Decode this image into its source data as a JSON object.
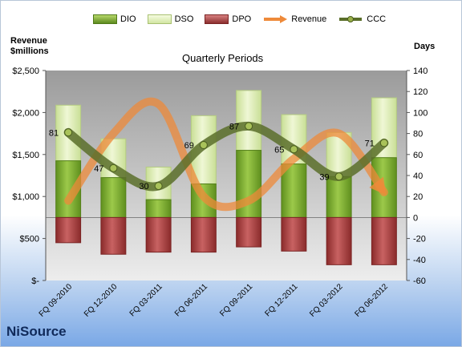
{
  "company": "NiSource",
  "left_axis_title": [
    "Revenue",
    "$millions"
  ],
  "right_axis_title": "Days",
  "subtitle": "Quarterly Periods",
  "legend": [
    {
      "key": "dio",
      "label": "DIO"
    },
    {
      "key": "dso",
      "label": "DSO"
    },
    {
      "key": "dpo",
      "label": "DPO"
    },
    {
      "key": "revenue",
      "label": "Revenue"
    },
    {
      "key": "ccc",
      "label": "CCC"
    }
  ],
  "colors": {
    "dio": "#7aa832",
    "dso": "#e2efb8",
    "dpo": "#a33c3c",
    "revenue": "#ee8a3a",
    "ccc": "#5a6e2a",
    "plot_bg": "#c8c8c8"
  },
  "chart_data": {
    "type": "bar",
    "categories": [
      "FQ 09-2010",
      "FQ 12-2010",
      "FQ 03-2011",
      "FQ 06-2011",
      "FQ 09-2011",
      "FQ 12-2011",
      "FQ 03-2012",
      "FQ 06-2012"
    ],
    "series": [
      {
        "name": "DIO",
        "axis": "right",
        "values": [
          54,
          38,
          17,
          32,
          64,
          51,
          39,
          57
        ]
      },
      {
        "name": "DSO",
        "axis": "right",
        "values": [
          53,
          37,
          31,
          65,
          57,
          47,
          42,
          57
        ]
      },
      {
        "name": "DPO",
        "axis": "right",
        "values": [
          -24,
          -35,
          -33,
          -33,
          -28,
          -32,
          -45,
          -45
        ]
      },
      {
        "name": "Revenue",
        "axis": "left",
        "type": "line",
        "values": [
          950,
          1750,
          2100,
          1000,
          950,
          1450,
          1750,
          1050
        ]
      },
      {
        "name": "CCC",
        "axis": "right",
        "type": "line",
        "values": [
          81,
          47,
          30,
          69,
          87,
          65,
          39,
          71
        ]
      }
    ],
    "ccc_labels": [
      "81",
      "47",
      "30",
      "69",
      "87",
      "65",
      "39",
      "71"
    ],
    "left_axis": {
      "ylim": [
        0,
        2500
      ],
      "ticks": [
        0,
        500,
        1000,
        1500,
        2000,
        2500
      ],
      "tick_labels": [
        "$-",
        "$500",
        "$1,000",
        "$1,500",
        "$2,000",
        "$2,500"
      ]
    },
    "right_axis": {
      "ylim": [
        -60,
        140
      ],
      "ticks": [
        -60,
        -40,
        -20,
        0,
        20,
        40,
        60,
        80,
        100,
        120,
        140
      ],
      "tick_labels": [
        "-60",
        "-40",
        "-20",
        "0",
        "20",
        "40",
        "60",
        "80",
        "100",
        "120",
        "140"
      ]
    },
    "legend_position": "top",
    "grid": false
  }
}
